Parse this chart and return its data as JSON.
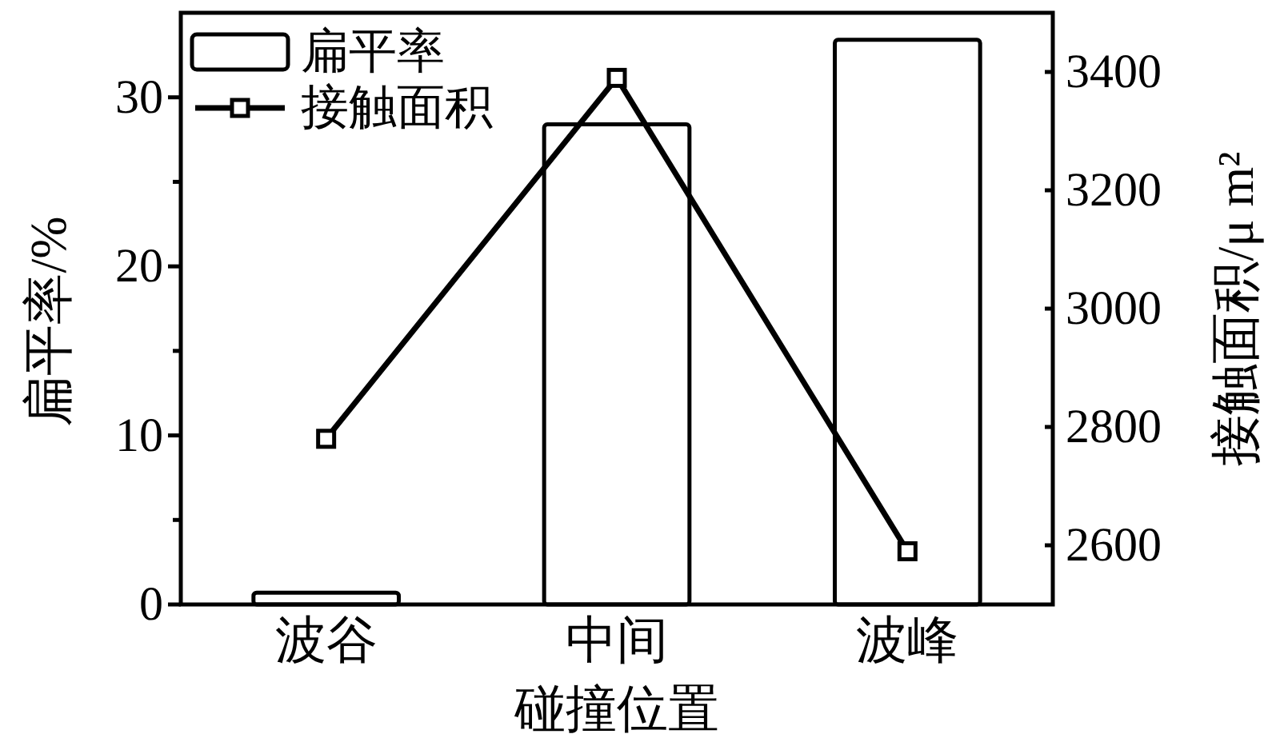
{
  "chart_data": {
    "type": "bar",
    "categories": [
      "波谷",
      "中间",
      "波峰"
    ],
    "xlabel": "碰撞位置",
    "ylabel": "扁平率/%",
    "y2label": "接触面积/μ m²",
    "ylim": [
      0,
      35
    ],
    "yticks": [
      0,
      {
        "value": 5,
        "label": null
      },
      10,
      {
        "value": 15,
        "label": null
      },
      20,
      {
        "value": 25,
        "label": null
      },
      30
    ],
    "y2lim": [
      2500,
      3500
    ],
    "y2ticks": [
      2600,
      2800,
      3000,
      3200,
      3400
    ],
    "series": [
      {
        "name": "扁平率",
        "color": "#ffffff",
        "values": [
          0.7,
          28.4,
          33.4
        ]
      },
      {
        "name": "接触面积",
        "type": "line",
        "axis": "y2",
        "color": "#000000",
        "values": [
          2780,
          3390,
          2590
        ]
      }
    ],
    "legend": "top left",
    "marker": "square",
    "line_style": "solid"
  }
}
